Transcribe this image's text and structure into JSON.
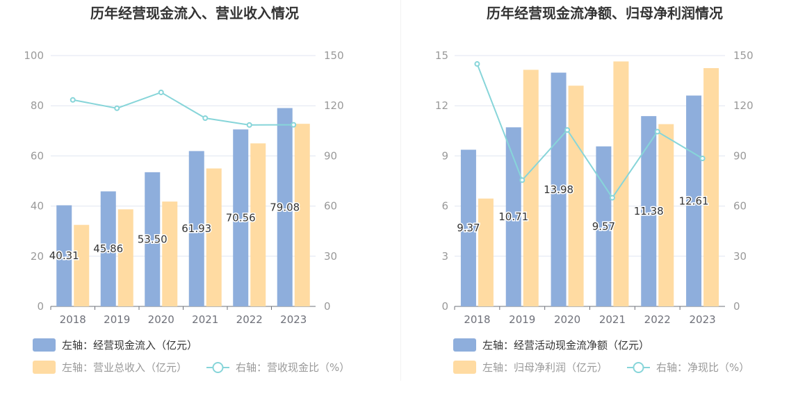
{
  "colors": {
    "bar_primary": "#8eaedc",
    "bar_secondary": "#ffdba2",
    "line": "#87d5d9",
    "grid": "#e0e6f1",
    "axis": "#6e7079",
    "tick_text": "#999999",
    "label_text": "#333333"
  },
  "chart_data": [
    {
      "type": "bar",
      "title": "历年经营现金流入、营业收入情况",
      "categories": [
        "2018",
        "2019",
        "2020",
        "2021",
        "2022",
        "2023"
      ],
      "left_axis": {
        "ylim": [
          0,
          100
        ],
        "ticks": [
          "0",
          "20",
          "40",
          "60",
          "80",
          "100"
        ]
      },
      "right_axis": {
        "ylim": [
          0,
          150
        ],
        "ticks": [
          "0",
          "30",
          "60",
          "90",
          "120",
          "150"
        ]
      },
      "series": [
        {
          "name": "左轴：经营现金流入（亿元）",
          "type": "bar",
          "axis": "left",
          "values": [
            40.31,
            45.86,
            53.5,
            61.93,
            70.56,
            79.08
          ],
          "labels": [
            "40.31",
            "45.86",
            "53.50",
            "61.93",
            "70.56",
            "79.08"
          ]
        },
        {
          "name": "左轴：营业总收入（亿元）",
          "type": "bar",
          "axis": "left",
          "values": [
            32.5,
            38.7,
            41.8,
            55.0,
            65.0,
            72.8
          ]
        },
        {
          "name": "右轴：营收现金比（%）",
          "type": "line",
          "axis": "right",
          "values": [
            123.5,
            118.5,
            128.0,
            112.6,
            108.5,
            108.6
          ]
        }
      ]
    },
    {
      "type": "bar",
      "title": "历年经营现金流净额、归母净利润情况",
      "categories": [
        "2018",
        "2019",
        "2020",
        "2021",
        "2022",
        "2023"
      ],
      "left_axis": {
        "ylim": [
          0,
          15
        ],
        "ticks": [
          "0",
          "3",
          "6",
          "9",
          "12",
          "15"
        ]
      },
      "right_axis": {
        "ylim": [
          0,
          150
        ],
        "ticks": [
          "0",
          "30",
          "60",
          "90",
          "120",
          "150"
        ]
      },
      "series": [
        {
          "name": "左轴：经营活动现金流净额（亿元）",
          "type": "bar",
          "axis": "left",
          "values": [
            9.37,
            10.71,
            13.98,
            9.57,
            11.38,
            12.61
          ],
          "labels": [
            "9.37",
            "10.71",
            "13.98",
            "9.57",
            "11.38",
            "12.61"
          ]
        },
        {
          "name": "左轴：归母净利润（亿元）",
          "type": "bar",
          "axis": "left",
          "values": [
            6.45,
            14.15,
            13.2,
            14.65,
            10.9,
            14.25
          ]
        },
        {
          "name": "右轴：净现比（%）",
          "type": "line",
          "axis": "right",
          "values": [
            145.0,
            75.5,
            105.5,
            65.0,
            104.5,
            88.5
          ]
        }
      ]
    }
  ]
}
